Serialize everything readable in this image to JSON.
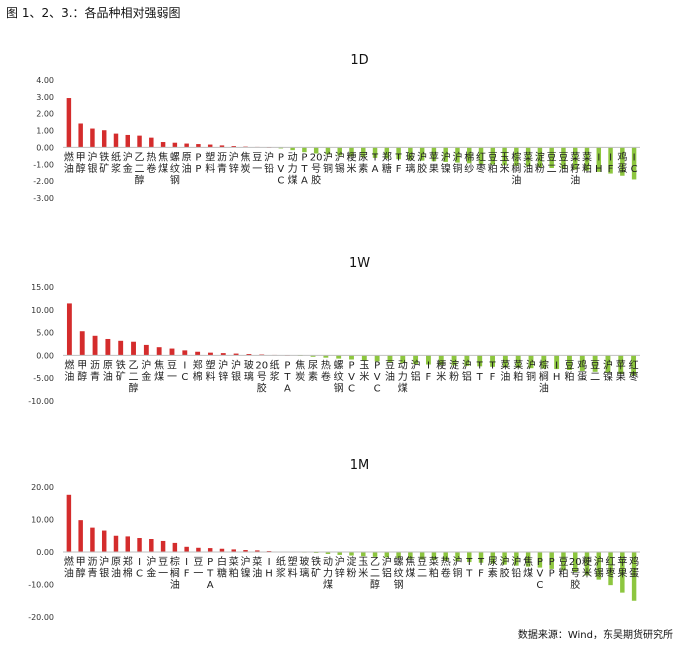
{
  "caption": "图 1、2、3.：各品种相对强弱图",
  "source": "数据来源：Wind，东吴期货研究所",
  "colors": {
    "positive": "#d42c2c",
    "negative": "#8dc63f",
    "axis": "#bfbfbf"
  },
  "chart_data": [
    {
      "type": "bar",
      "title": "1D",
      "ylim": [
        -3,
        4
      ],
      "yticks": [
        "4.00",
        "3.00",
        "2.00",
        "1.00",
        "0.00",
        "-1.00",
        "-2.00",
        "-3.00"
      ],
      "tick_values": [
        4,
        3,
        2,
        1,
        0,
        -1,
        -2,
        -3
      ],
      "categories": [
        "燃油",
        "甲醇",
        "沪银",
        "铁矿",
        "纸浆",
        "沪金",
        "乙二醇",
        "热卷",
        "焦煤",
        "螺纹钢",
        "原油",
        "PP",
        "塑料",
        "沥青",
        "沪锌",
        "焦炭",
        "豆一",
        "沪铅",
        "PVC",
        "动力煤",
        "PTA",
        "20号胶",
        "沪铜",
        "沪锡",
        "粳米",
        "尿素",
        "TA",
        "郑糖",
        "TF",
        "玻璃",
        "沪胶",
        "苹果",
        "沪镍",
        "沪铜",
        "棉纱",
        "红枣",
        "豆粕",
        "玉米",
        "棕榈油",
        "菜油",
        "淀粉",
        "豆二",
        "豆油",
        "菜籽油",
        "菜粕",
        "IH",
        "IF",
        "鸡蛋",
        "IC"
      ],
      "values": [
        2.93,
        1.42,
        1.12,
        1.02,
        0.82,
        0.74,
        0.7,
        0.58,
        0.32,
        0.28,
        0.23,
        0.2,
        0.17,
        0.12,
        0.08,
        0.05,
        0.03,
        0.01,
        -0.06,
        -0.16,
        -0.28,
        -0.36,
        -0.42,
        -0.48,
        -0.54,
        -0.58,
        -0.62,
        -0.66,
        -0.7,
        -0.74,
        -0.78,
        -0.82,
        -0.86,
        -0.9,
        -0.94,
        -0.98,
        -1.02,
        -1.06,
        -1.1,
        -1.14,
        -1.18,
        -1.22,
        -1.26,
        -1.32,
        -1.38,
        -1.45,
        -1.55,
        -1.68,
        -1.9
      ]
    },
    {
      "type": "bar",
      "title": "1W",
      "ylim": [
        -10,
        15
      ],
      "yticks": [
        "15.00",
        "10.00",
        "5.00",
        "0.00",
        "-5.00",
        "-10.00"
      ],
      "tick_values": [
        15,
        10,
        5,
        0,
        -5,
        -10
      ],
      "categories": [
        "燃油",
        "甲醇",
        "沥青",
        "原油",
        "铁矿",
        "乙二醇",
        "沪金",
        "焦煤",
        "豆一",
        "IC",
        "郑棉",
        "塑料",
        "沪锌",
        "沪银",
        "玻璃",
        "20号胶",
        "纸浆",
        "PTA",
        "焦炭",
        "尿素",
        "热卷",
        "螺纹钢",
        "PVC",
        "玉米",
        "PVC",
        "豆油",
        "动力煤",
        "沪铝",
        "IF",
        "粳米",
        "淀粉",
        "沪铝",
        "TT",
        "TF",
        "菜油",
        "菜粕",
        "沪铜",
        "棕榈油",
        "IH",
        "豆粕",
        "鸡蛋",
        "豆二",
        "沪镍",
        "苹果",
        "红枣"
      ],
      "values": [
        11.4,
        5.3,
        4.3,
        3.6,
        3.2,
        3.0,
        2.3,
        1.8,
        1.5,
        1.1,
        0.8,
        0.6,
        0.5,
        0.4,
        0.3,
        0.2,
        0.1,
        0.05,
        -0.1,
        -0.3,
        -0.5,
        -0.7,
        -0.9,
        -1.1,
        -1.3,
        -1.5,
        -1.7,
        -1.9,
        -2.0,
        -2.1,
        -2.2,
        -2.3,
        -2.4,
        -2.5,
        -2.6,
        -2.7,
        -2.8,
        -2.9,
        -3.0,
        -3.2,
        -3.4,
        -3.6,
        -3.8,
        -4.0,
        -4.4
      ]
    },
    {
      "type": "bar",
      "title": "1M",
      "ylim": [
        -20,
        20
      ],
      "yticks": [
        "20.00",
        "10.00",
        "0.00",
        "-10.00",
        "-20.00"
      ],
      "tick_values": [
        20,
        10,
        0,
        -10,
        -20
      ],
      "categories": [
        "燃油",
        "甲醇",
        "沥青",
        "沪银",
        "原油",
        "郑棉",
        "IC",
        "沪金",
        "豆一",
        "棕榈油",
        "IF",
        "豆一",
        "PTA",
        "白糖",
        "菜粕",
        "沪镍",
        "菜油",
        "IH",
        "纸浆",
        "塑料",
        "玻璃",
        "铁矿",
        "动力煤",
        "沪锌",
        "淀粉",
        "玉米",
        "乙二醇",
        "沪铝",
        "螺纹钢",
        "焦煤",
        "豆二",
        "菜粕",
        "热卷",
        "沪铜",
        "TT",
        "TF",
        "尿素",
        "沪胶",
        "沪铅",
        "焦煤",
        "PVC",
        "PP",
        "豆粕",
        "20号胶",
        "粳米",
        "沪锡",
        "红枣",
        "苹果",
        "鸡蛋"
      ],
      "values": [
        17.6,
        9.8,
        7.5,
        6.6,
        5.0,
        4.8,
        4.3,
        4.0,
        3.4,
        2.8,
        1.6,
        1.3,
        1.2,
        1.0,
        0.8,
        0.6,
        0.5,
        0.3,
        0.15,
        0.05,
        -0.1,
        -0.3,
        -0.6,
        -0.9,
        -1.1,
        -1.3,
        -1.5,
        -1.7,
        -1.9,
        -2.1,
        -2.3,
        -2.5,
        -2.7,
        -2.9,
        -3.1,
        -3.3,
        -3.6,
        -3.9,
        -4.2,
        -4.5,
        -4.8,
        -5.2,
        -5.7,
        -6.3,
        -7.2,
        -8.5,
        -10.2,
        -12.5,
        -15.0
      ]
    }
  ]
}
